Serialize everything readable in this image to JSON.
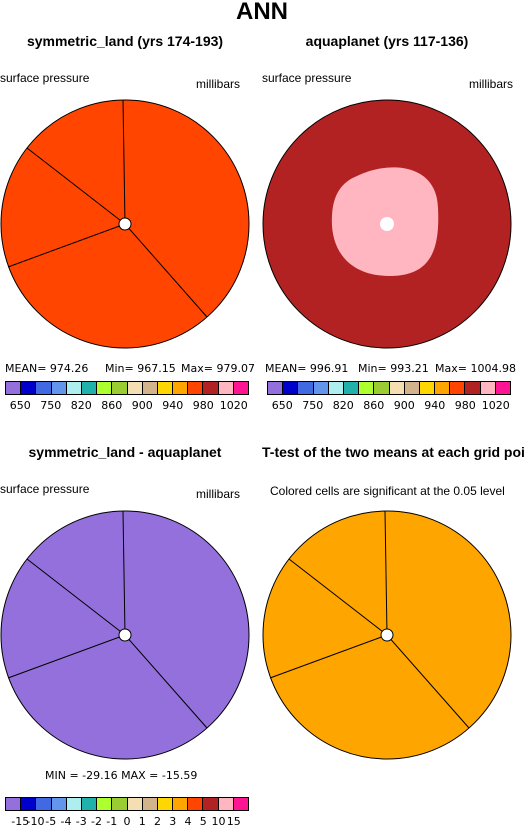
{
  "header": {
    "title": "ANN"
  },
  "panels": [
    {
      "title": "symmetric_land (yrs 174-193)",
      "left_label": "surface pressure",
      "right_label": "millibars",
      "fill": "#ff4500",
      "stats": {
        "mean": "MEAN= 974.26",
        "min": "Min= 967.15",
        "max": "Max= 979.07"
      }
    },
    {
      "title": "aquaplanet (yrs 117-136)",
      "left_label": "surface pressure",
      "right_label": "millibars",
      "fill": "#b22222",
      "inner_fill": "#ffb6c1",
      "stats": {
        "mean": "MEAN= 996.91",
        "min": "Min= 993.21",
        "max": "Max= 1004.98"
      }
    },
    {
      "title": "symmetric_land - aquaplanet",
      "left_label": "surface pressure",
      "right_label": "millibars",
      "fill": "#9370db",
      "stats": {
        "minmax": "MIN = -29.16  MAX = -15.59"
      }
    },
    {
      "title": "T-test of the two means at each grid point",
      "left_label": "Colored cells are significant at the 0.05 level",
      "right_label": "",
      "fill": "#ffa500"
    }
  ],
  "colorbars": {
    "colors": [
      "#9370db",
      "#0000cd",
      "#4169e1",
      "#6495ed",
      "#afeeee",
      "#20b2aa",
      "#adff2f",
      "#9acd32",
      "#f5deb3",
      "#d2b48c",
      "#ffd700",
      "#ffa500",
      "#ff4500",
      "#b22222",
      "#ffb6c1",
      "#ff1493"
    ],
    "top_ticks": [
      "650",
      "750",
      "820",
      "860",
      "900",
      "940",
      "980",
      "1020"
    ],
    "diff_ticks": [
      "-15",
      "-10",
      "-5",
      "-4",
      "-3",
      "-2",
      "-1",
      "0",
      "1",
      "2",
      "3",
      "4",
      "5",
      "10",
      "15"
    ]
  }
}
